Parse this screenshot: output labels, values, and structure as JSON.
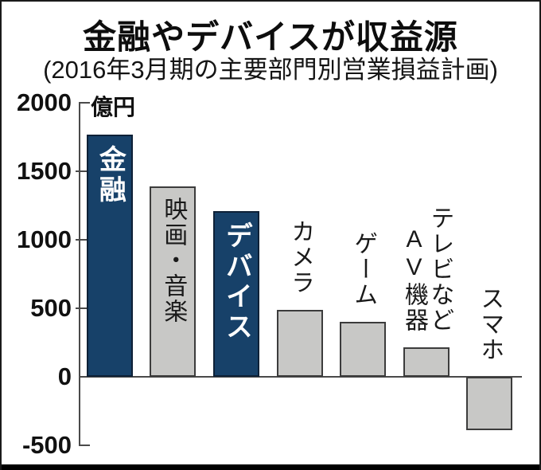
{
  "chart_data": {
    "type": "bar",
    "title": "金融やデバイスが収益源",
    "subtitle": "(2016年3月期の主要部門別営業損益計画)",
    "unit": "億円",
    "categories": [
      "金融",
      "映画・音楽",
      "デバイス",
      "カメラ",
      "ゲーム",
      "テレビなどAV機器",
      "スマホ"
    ],
    "values": [
      1770,
      1390,
      1210,
      490,
      400,
      215,
      -390
    ],
    "yticks": [
      2000,
      1500,
      1000,
      500,
      0,
      -500
    ],
    "ylim": [
      -620,
      2000
    ],
    "grid": false,
    "legend": "none",
    "xlabel": "",
    "ylabel": "億円",
    "highlight": [
      true,
      false,
      true,
      false,
      false,
      false,
      false
    ],
    "label_positions": [
      "inside",
      "inside",
      "inside",
      "above",
      "above",
      "above",
      "above"
    ],
    "label_display": [
      "金融",
      "映画・音楽",
      "デバイス",
      "カメラ",
      "ゲーム",
      "テレビなど\nAV機器",
      "スマホ"
    ],
    "colors": {
      "highlight_bar": "#174169",
      "default_bar": "#c8c8c6",
      "highlight_border": "#0e2137",
      "default_border": "#3c3c3c",
      "axis": "#4a4a4a",
      "inside_label_on_highlight": "#ffffff",
      "inside_label_on_default": "#1a1a1a",
      "text": "#111111"
    }
  }
}
